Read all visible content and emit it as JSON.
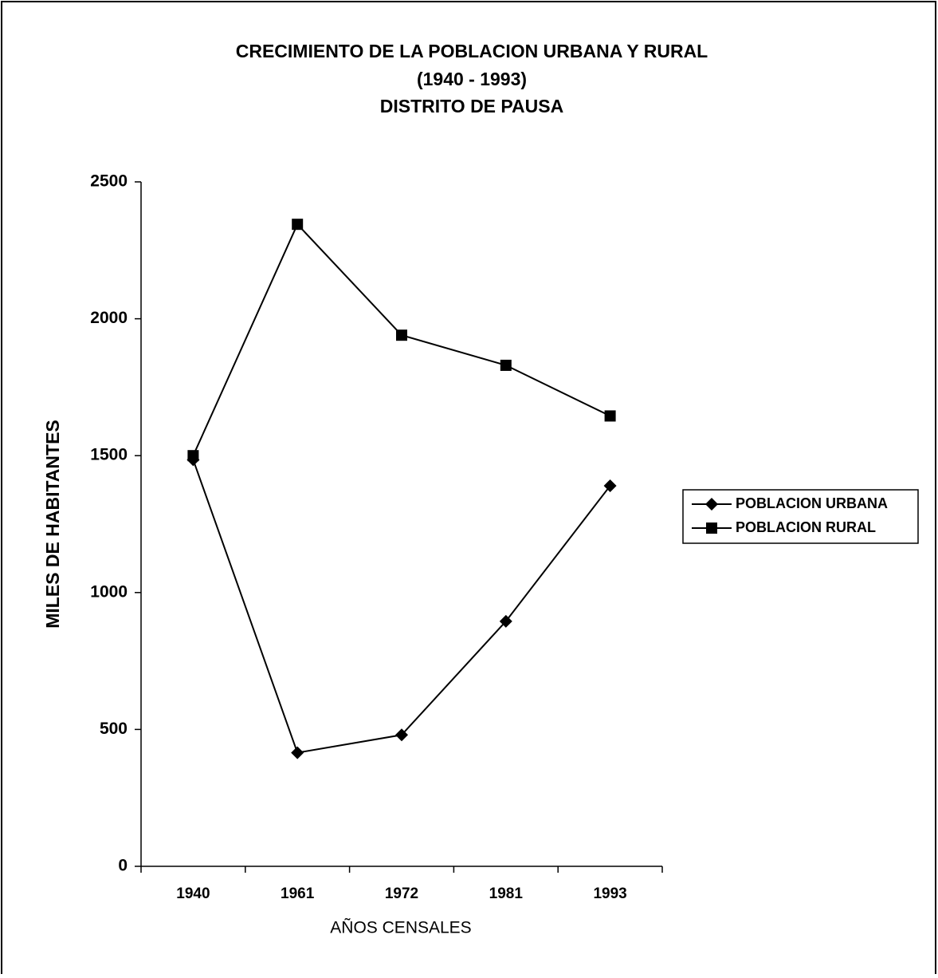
{
  "chart_data": {
    "type": "line",
    "title": [
      "CRECIMIENTO DE LA POBLACION URBANA Y RURAL",
      "(1940 - 1993)",
      "DISTRITO DE PAUSA"
    ],
    "x_label": "AÑOS CENSALES",
    "y_label": "MILES DE HABITANTES",
    "categories": [
      "1940",
      "1961",
      "1972",
      "1981",
      "1993"
    ],
    "series": [
      {
        "name": "POBLACION URBANA",
        "color": "#000000",
        "marker": "diamond",
        "values": [
          1485,
          415,
          480,
          895,
          1390
        ]
      },
      {
        "name": "POBLACION RURAL",
        "color": "#000000",
        "marker": "square",
        "values": [
          1500,
          2345,
          1940,
          1830,
          1645
        ]
      }
    ],
    "ylim": [
      0,
      2500
    ],
    "yticks": [
      0,
      500,
      1000,
      1500,
      2000,
      2500
    ],
    "grid": false,
    "legend": "right"
  }
}
